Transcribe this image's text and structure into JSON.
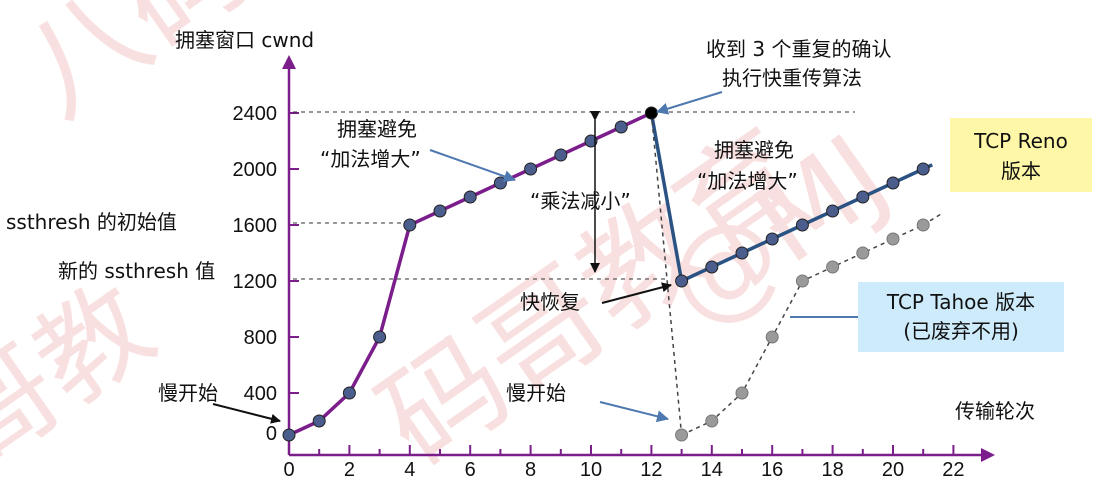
{
  "axis": {
    "y_label": "拥塞窗口 cwnd",
    "x_label": "传输轮次",
    "y_ticks": [
      "0",
      "400",
      "800",
      "1200",
      "1600",
      "2000",
      "2400"
    ],
    "x_ticks": [
      "0",
      "2",
      "4",
      "6",
      "8",
      "10",
      "12",
      "14",
      "16",
      "18",
      "20",
      "22"
    ]
  },
  "labels": {
    "ssthresh_initial": "ssthresh 的初始值",
    "ssthresh_new": "新的 ssthresh 值",
    "triple_ack_line1": "收到 3 个重复的确认",
    "triple_ack_line2": "执行快重传算法",
    "ca1_line1": "拥塞避免",
    "ca1_line2": "“加法增大”",
    "ca2_line1": "拥塞避免",
    "ca2_line2": "“加法增大”",
    "md": "“乘法减小”",
    "fast_recovery": "快恢复",
    "slow_start_1": "慢开始",
    "slow_start_2": "慢开始"
  },
  "boxes": {
    "reno_line1": "TCP Reno",
    "reno_line2": "版本",
    "tahoe_line1": "TCP Tahoe 版本",
    "tahoe_line2": "(已废弃不用)"
  },
  "colors": {
    "purple": "#7b1e8c",
    "blue": "#2a5283",
    "marker": "#4a5d8c",
    "gray": "#8c8c8c",
    "reno_box": "#fff7a8",
    "tahoe_box": "#cdebfa",
    "watermark": "#f4c6c6"
  },
  "chart_data": {
    "type": "line",
    "xlabel": "传输轮次",
    "ylabel": "拥塞窗口 cwnd",
    "xlim": [
      0,
      22
    ],
    "ylim": [
      0,
      2400
    ],
    "series": [
      {
        "values": [
          [
            0,
            100
          ],
          [
            1,
            200
          ],
          [
            2,
            400
          ],
          [
            3,
            800
          ],
          [
            4,
            1600
          ],
          [
            5,
            1700
          ],
          [
            6,
            1800
          ],
          [
            7,
            1900
          ],
          [
            8,
            2000
          ],
          [
            9,
            2100
          ],
          [
            10,
            2200
          ],
          [
            11,
            2300
          ],
          [
            12,
            2400
          ]
        ]
      },
      {
        "values": [
          [
            13,
            1200
          ],
          [
            14,
            1300
          ],
          [
            15,
            1400
          ],
          [
            16,
            1500
          ],
          [
            17,
            1600
          ],
          [
            18,
            1700
          ],
          [
            19,
            1800
          ],
          [
            20,
            1900
          ],
          [
            21,
            2000
          ]
        ]
      },
      {
        "values": [
          [
            13,
            100
          ],
          [
            14,
            200
          ],
          [
            15,
            400
          ],
          [
            16,
            800
          ],
          [
            17,
            1200
          ],
          [
            18,
            1300
          ],
          [
            19,
            1400
          ],
          [
            20,
            1500
          ],
          [
            21,
            1600
          ]
        ]
      }
    ]
  }
}
